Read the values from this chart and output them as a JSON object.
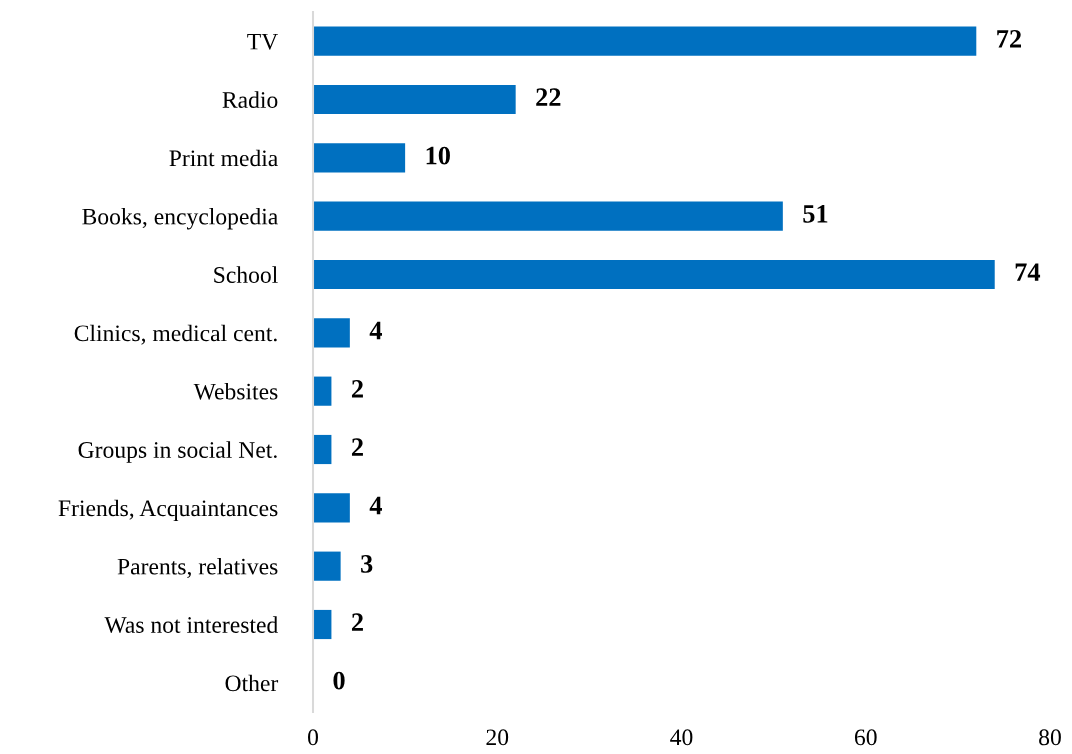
{
  "chart_data": {
    "type": "bar",
    "orientation": "horizontal",
    "categories": [
      "TV",
      "Radio",
      "Print media",
      "Books, encyclopedia",
      "School",
      "Clinics, medical cent.",
      "Websites",
      "Groups in social Net.",
      "Friends, Acquaintances",
      "Parents, relatives",
      "Was not interested",
      "Other"
    ],
    "values": [
      72,
      22,
      10,
      51,
      74,
      4,
      2,
      2,
      4,
      3,
      2,
      0
    ],
    "color": "#0070c0",
    "xlim": [
      0,
      80
    ],
    "xticks": [
      0,
      20,
      40,
      60,
      80
    ],
    "data_labels": true,
    "grid": false,
    "legend": false
  }
}
